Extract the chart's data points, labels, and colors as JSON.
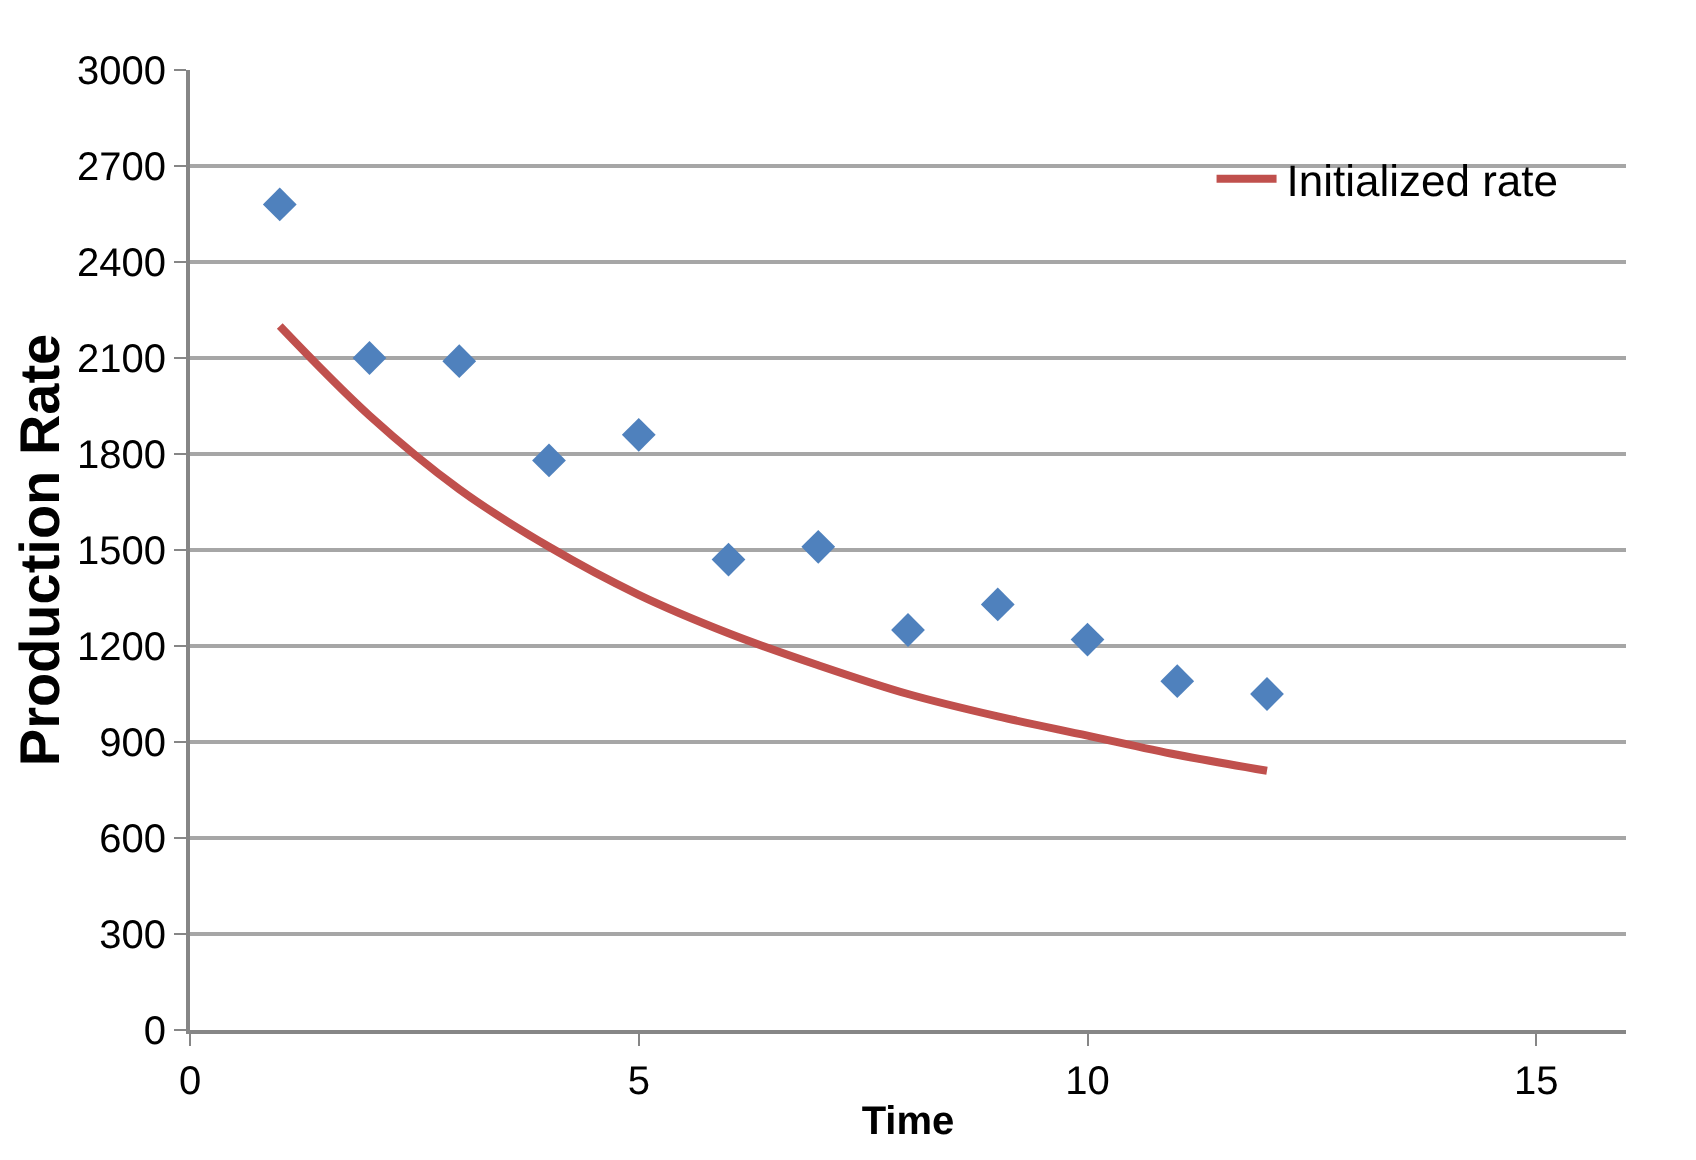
{
  "chart_data": {
    "type": "scatter",
    "xlabel": "Time",
    "ylabel": "Production Rate",
    "xlim": [
      0,
      16
    ],
    "xticks": [
      0,
      5,
      10,
      15
    ],
    "ylim": [
      0,
      3000
    ],
    "yticks": [
      0,
      300,
      600,
      900,
      1200,
      1500,
      1800,
      2100,
      2400,
      2700,
      3000
    ],
    "grid": "y",
    "legend": "top right",
    "series": [
      {
        "marker": "diamond",
        "color": "#4f81bd",
        "x": [
          1,
          2,
          3,
          4,
          5,
          6,
          7,
          8,
          9,
          10,
          11,
          12
        ],
        "values": [
          2580,
          2100,
          2090,
          1780,
          1860,
          1470,
          1510,
          1250,
          1330,
          1220,
          1090,
          1050
        ]
      },
      {
        "type": "line",
        "name": "Initialized rate",
        "marker": "none",
        "line_style": "solid",
        "color": "#c0504d",
        "x": [
          1,
          2,
          3,
          4,
          5,
          6,
          7,
          8,
          9,
          10,
          11,
          12
        ],
        "values": [
          2200,
          1920,
          1690,
          1510,
          1360,
          1240,
          1140,
          1050,
          980,
          920,
          860,
          810
        ]
      }
    ]
  }
}
